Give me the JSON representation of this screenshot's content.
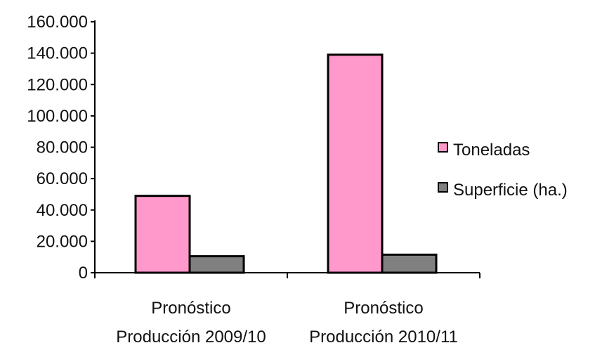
{
  "chart_data": {
    "type": "bar",
    "title": "",
    "xlabel": "",
    "ylabel": "",
    "categories": [
      [
        "Pronóstico",
        "Producción 2009/10"
      ],
      [
        "Pronóstico",
        "Producción 2010/11"
      ]
    ],
    "series": [
      {
        "name": "Toneladas",
        "values": [
          49000,
          139000
        ],
        "color": "#ff99cc"
      },
      {
        "name": "Superficie (ha.)",
        "values": [
          10500,
          11500
        ],
        "color": "#808080"
      }
    ],
    "ylim": [
      0,
      160000
    ],
    "yticks": [
      0,
      20000,
      40000,
      60000,
      80000,
      100000,
      120000,
      140000,
      160000
    ],
    "ytick_labels": [
      "0",
      "20.000",
      "40.000",
      "60.000",
      "80.000",
      "100.000",
      "120.000",
      "140.000",
      "160.000"
    ],
    "grid": false,
    "legend_position": "right"
  }
}
